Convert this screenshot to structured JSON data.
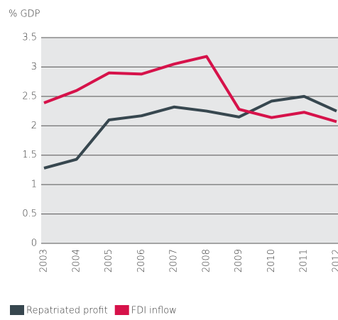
{
  "chart_data": {
    "type": "line",
    "y_axis_label": "% GDP",
    "categories": [
      "2003",
      "2004",
      "2005",
      "2006",
      "2007",
      "2008",
      "2009",
      "2010",
      "2011",
      "2012"
    ],
    "series": [
      {
        "name": "Repatriated profit",
        "color": "#37474f",
        "values": [
          1.28,
          1.43,
          2.1,
          2.17,
          2.32,
          2.25,
          2.15,
          2.42,
          2.5,
          2.25
        ]
      },
      {
        "name": "FDI inflow",
        "color": "#d6124a",
        "values": [
          2.39,
          2.6,
          2.9,
          2.88,
          3.05,
          3.18,
          2.28,
          2.14,
          2.23,
          2.07
        ]
      }
    ],
    "ylim": [
      0,
      3.5
    ],
    "yticks": [
      0,
      0.5,
      1,
      1.5,
      2,
      2.5,
      3,
      3.5
    ],
    "grid": true
  }
}
